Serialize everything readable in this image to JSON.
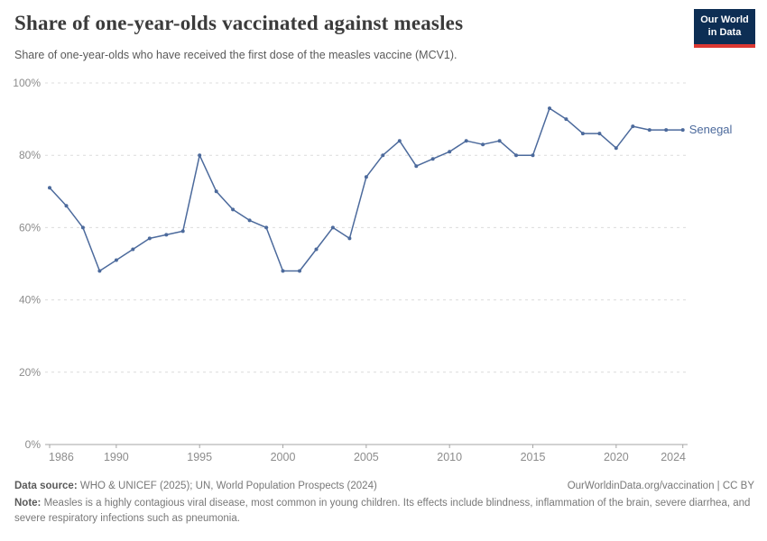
{
  "header": {
    "title": "Share of one-year-olds vaccinated against measles",
    "subtitle": "Share of one-year-olds who have received the first dose of the measles vaccine (MCV1).",
    "logo": {
      "line1": "Our World",
      "line2": "in Data",
      "bg_color": "#0d2e54",
      "accent_color": "#dc3832"
    }
  },
  "chart_data": {
    "type": "line",
    "title": "Share of one-year-olds vaccinated against measles",
    "xlabel": "",
    "ylabel": "",
    "ylim": [
      0,
      100
    ],
    "grid": "horizontal-dashed",
    "legend_position": "end-of-line-label",
    "yticks": [
      {
        "label": "0%",
        "value": 0
      },
      {
        "label": "20%",
        "value": 20
      },
      {
        "label": "40%",
        "value": 40
      },
      {
        "label": "60%",
        "value": 60
      },
      {
        "label": "80%",
        "value": 80
      },
      {
        "label": "100%",
        "value": 100
      }
    ],
    "xticks": [
      1986,
      1990,
      1995,
      2000,
      2005,
      2010,
      2015,
      2020,
      2024
    ],
    "x": [
      1986,
      1987,
      1988,
      1989,
      1990,
      1991,
      1992,
      1993,
      1994,
      1995,
      1996,
      1997,
      1998,
      1999,
      2000,
      2001,
      2002,
      2003,
      2004,
      2005,
      2006,
      2007,
      2008,
      2009,
      2010,
      2011,
      2012,
      2013,
      2014,
      2015,
      2016,
      2017,
      2018,
      2019,
      2020,
      2021,
      2022,
      2023,
      2024
    ],
    "series": [
      {
        "name": "Senegal",
        "color": "#4C6A9C",
        "values": [
          71,
          66,
          60,
          48,
          51,
          54,
          57,
          58,
          59,
          80,
          70,
          65,
          62,
          60,
          48,
          48,
          54,
          60,
          57,
          74,
          80,
          84,
          77,
          79,
          81,
          84,
          83,
          84,
          80,
          80,
          93,
          90,
          86,
          86,
          82,
          88,
          87,
          87,
          87
        ]
      }
    ],
    "colors": {
      "gridline": "#dcdcdc",
      "axis": "#a5a5a5",
      "tick_label": "#8c8c8c"
    }
  },
  "footer": {
    "datasource_label": "Data source:",
    "datasource_value": " WHO & UNICEF (2025); UN, World Population Prospects (2024)",
    "citation": "OurWorldinData.org/vaccination | CC BY",
    "note_label": "Note:",
    "note_value": " Measles is a highly contagious viral disease, most common in young children. Its effects include blindness, inflammation of the brain, severe diarrhea, and severe respiratory infections such as pneumonia."
  }
}
